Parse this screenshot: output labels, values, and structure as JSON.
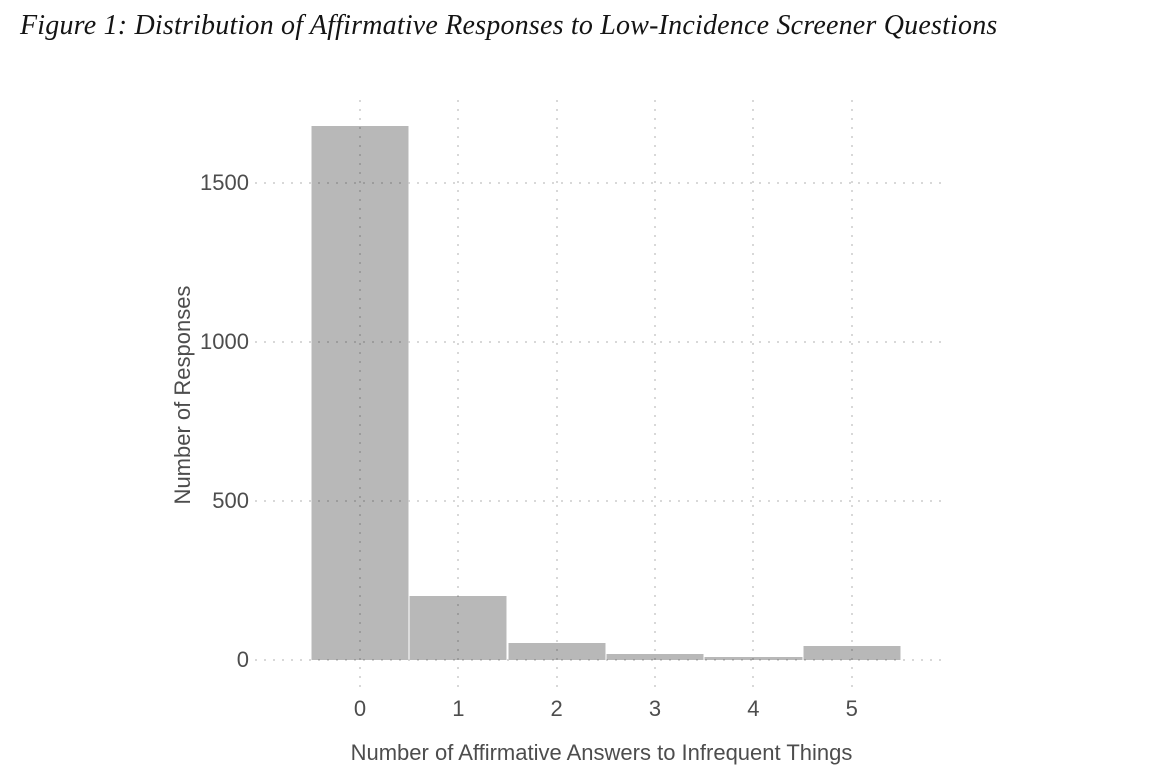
{
  "figure": {
    "title": "Figure 1: Distribution of Affirmative Responses to Low-Incidence Screener Questions"
  },
  "chart_data": {
    "type": "bar",
    "subtype": "histogram",
    "title": "Figure 1: Distribution of Affirmative Responses to Low-Incidence Screener Questions",
    "categories": [
      0,
      1,
      2,
      3,
      4,
      5
    ],
    "values": [
      1678,
      200,
      52,
      20,
      11,
      45
    ],
    "xlabel": "Number of Affirmative Answers to Infrequent Things",
    "ylabel": "Number of Responses",
    "xticks": [
      0,
      1,
      2,
      3,
      4,
      5
    ],
    "yticks": [
      0,
      500,
      1000,
      1500
    ],
    "ylim": [
      0,
      1760
    ],
    "grid": "dotted",
    "legend": "none",
    "bar_color": "#b5b5b5",
    "bar_separator_color": "#c9c9c9",
    "grid_color": "#d8d8d8",
    "tick_label_color": "#4d4d4d",
    "axis_title_color": "#4d4d4d",
    "title_color": "#141414",
    "background_color": "#ffffff"
  }
}
